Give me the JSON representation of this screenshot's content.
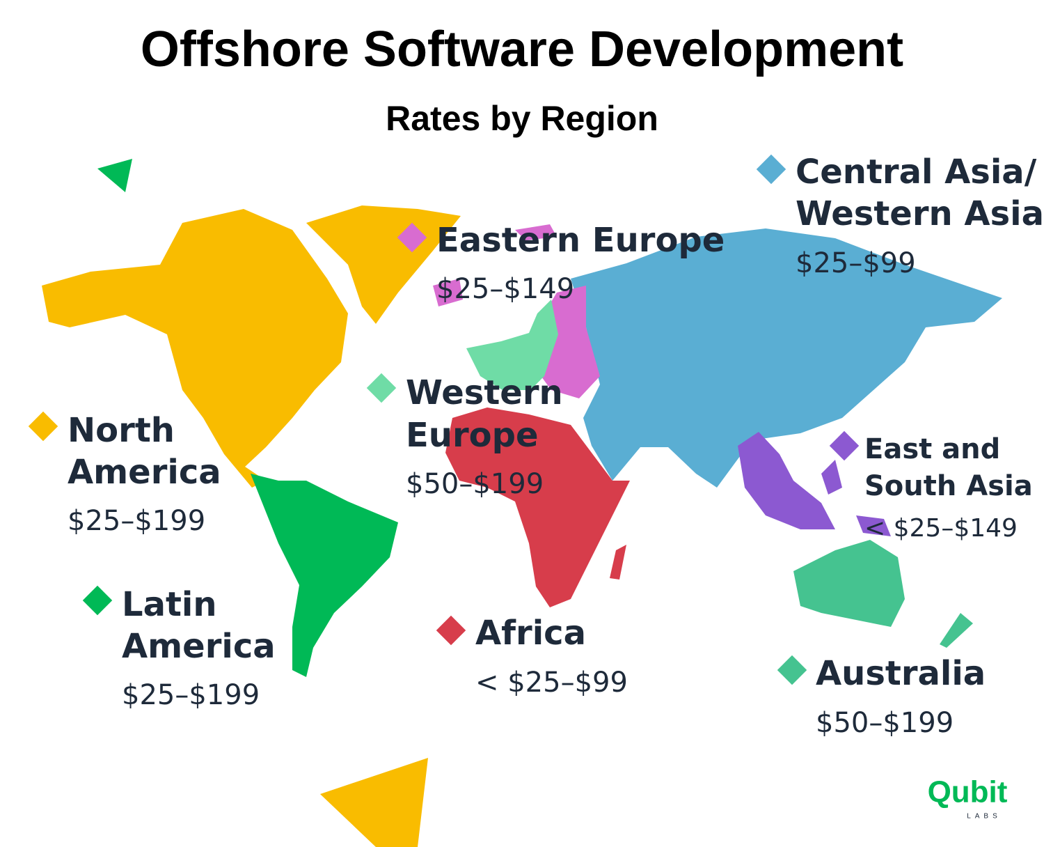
{
  "title": "Offshore Software Development",
  "subtitle": "Rates by Region",
  "regions": [
    {
      "name_lines": [
        "Central Asia/",
        "Western Asia"
      ],
      "rate": "$25–$99",
      "color": "#5aaed3"
    },
    {
      "name_lines": [
        "Eastern Europe"
      ],
      "rate": "$25–$149",
      "color": "#d86cd0"
    },
    {
      "name_lines": [
        "Western",
        "Europe"
      ],
      "rate": "$50–$199",
      "color": "#6fdca6"
    },
    {
      "name_lines": [
        "North",
        "America"
      ],
      "rate": "$25–$199",
      "color": "#f9bc00"
    },
    {
      "name_lines": [
        "East and",
        "South Asia"
      ],
      "rate": "< $25–$149",
      "color": "#8c59d1"
    },
    {
      "name_lines": [
        "Latin",
        "America"
      ],
      "rate": "$25–$199",
      "color": "#00b956"
    },
    {
      "name_lines": [
        "Africa"
      ],
      "rate": "< $25–$99",
      "color": "#d73d4b"
    },
    {
      "name_lines": [
        "Australia"
      ],
      "rate": "$50–$199",
      "color": "#45c390"
    }
  ],
  "logo": {
    "name": "Qubit",
    "tagline": "LABS"
  }
}
